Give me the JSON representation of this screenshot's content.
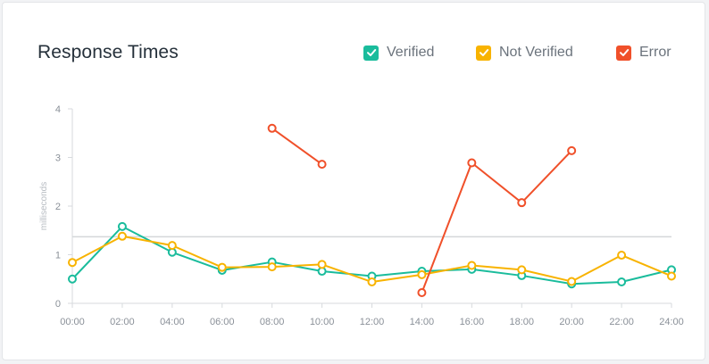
{
  "chart_data": {
    "type": "line",
    "title": "Response Times",
    "ylabel": "milliseconds",
    "xlabel": "",
    "ylim": [
      0,
      4
    ],
    "yticks": [
      "0",
      "1",
      "2",
      "3",
      "4"
    ],
    "x": [
      "00:00",
      "02:00",
      "04:00",
      "06:00",
      "08:00",
      "10:00",
      "12:00",
      "14:00",
      "16:00",
      "18:00",
      "20:00",
      "22:00",
      "24:00"
    ],
    "reference_line": 1.37,
    "legend_position": "top-right",
    "series": [
      {
        "name": "Verified",
        "color": "#1abc9c",
        "values": [
          0.5,
          1.58,
          1.05,
          0.68,
          0.85,
          0.66,
          0.56,
          0.66,
          0.7,
          0.57,
          0.4,
          0.44,
          0.69
        ]
      },
      {
        "name": "Not Verified",
        "color": "#f8b300",
        "values": [
          0.84,
          1.38,
          1.19,
          0.74,
          0.75,
          0.8,
          0.44,
          0.59,
          0.78,
          0.69,
          0.45,
          0.99,
          0.56
        ]
      },
      {
        "name": "Error",
        "color": "#f0502a",
        "values": [
          null,
          null,
          null,
          null,
          3.6,
          2.86,
          null,
          0.22,
          2.89,
          2.07,
          3.14,
          null,
          null
        ]
      }
    ]
  }
}
